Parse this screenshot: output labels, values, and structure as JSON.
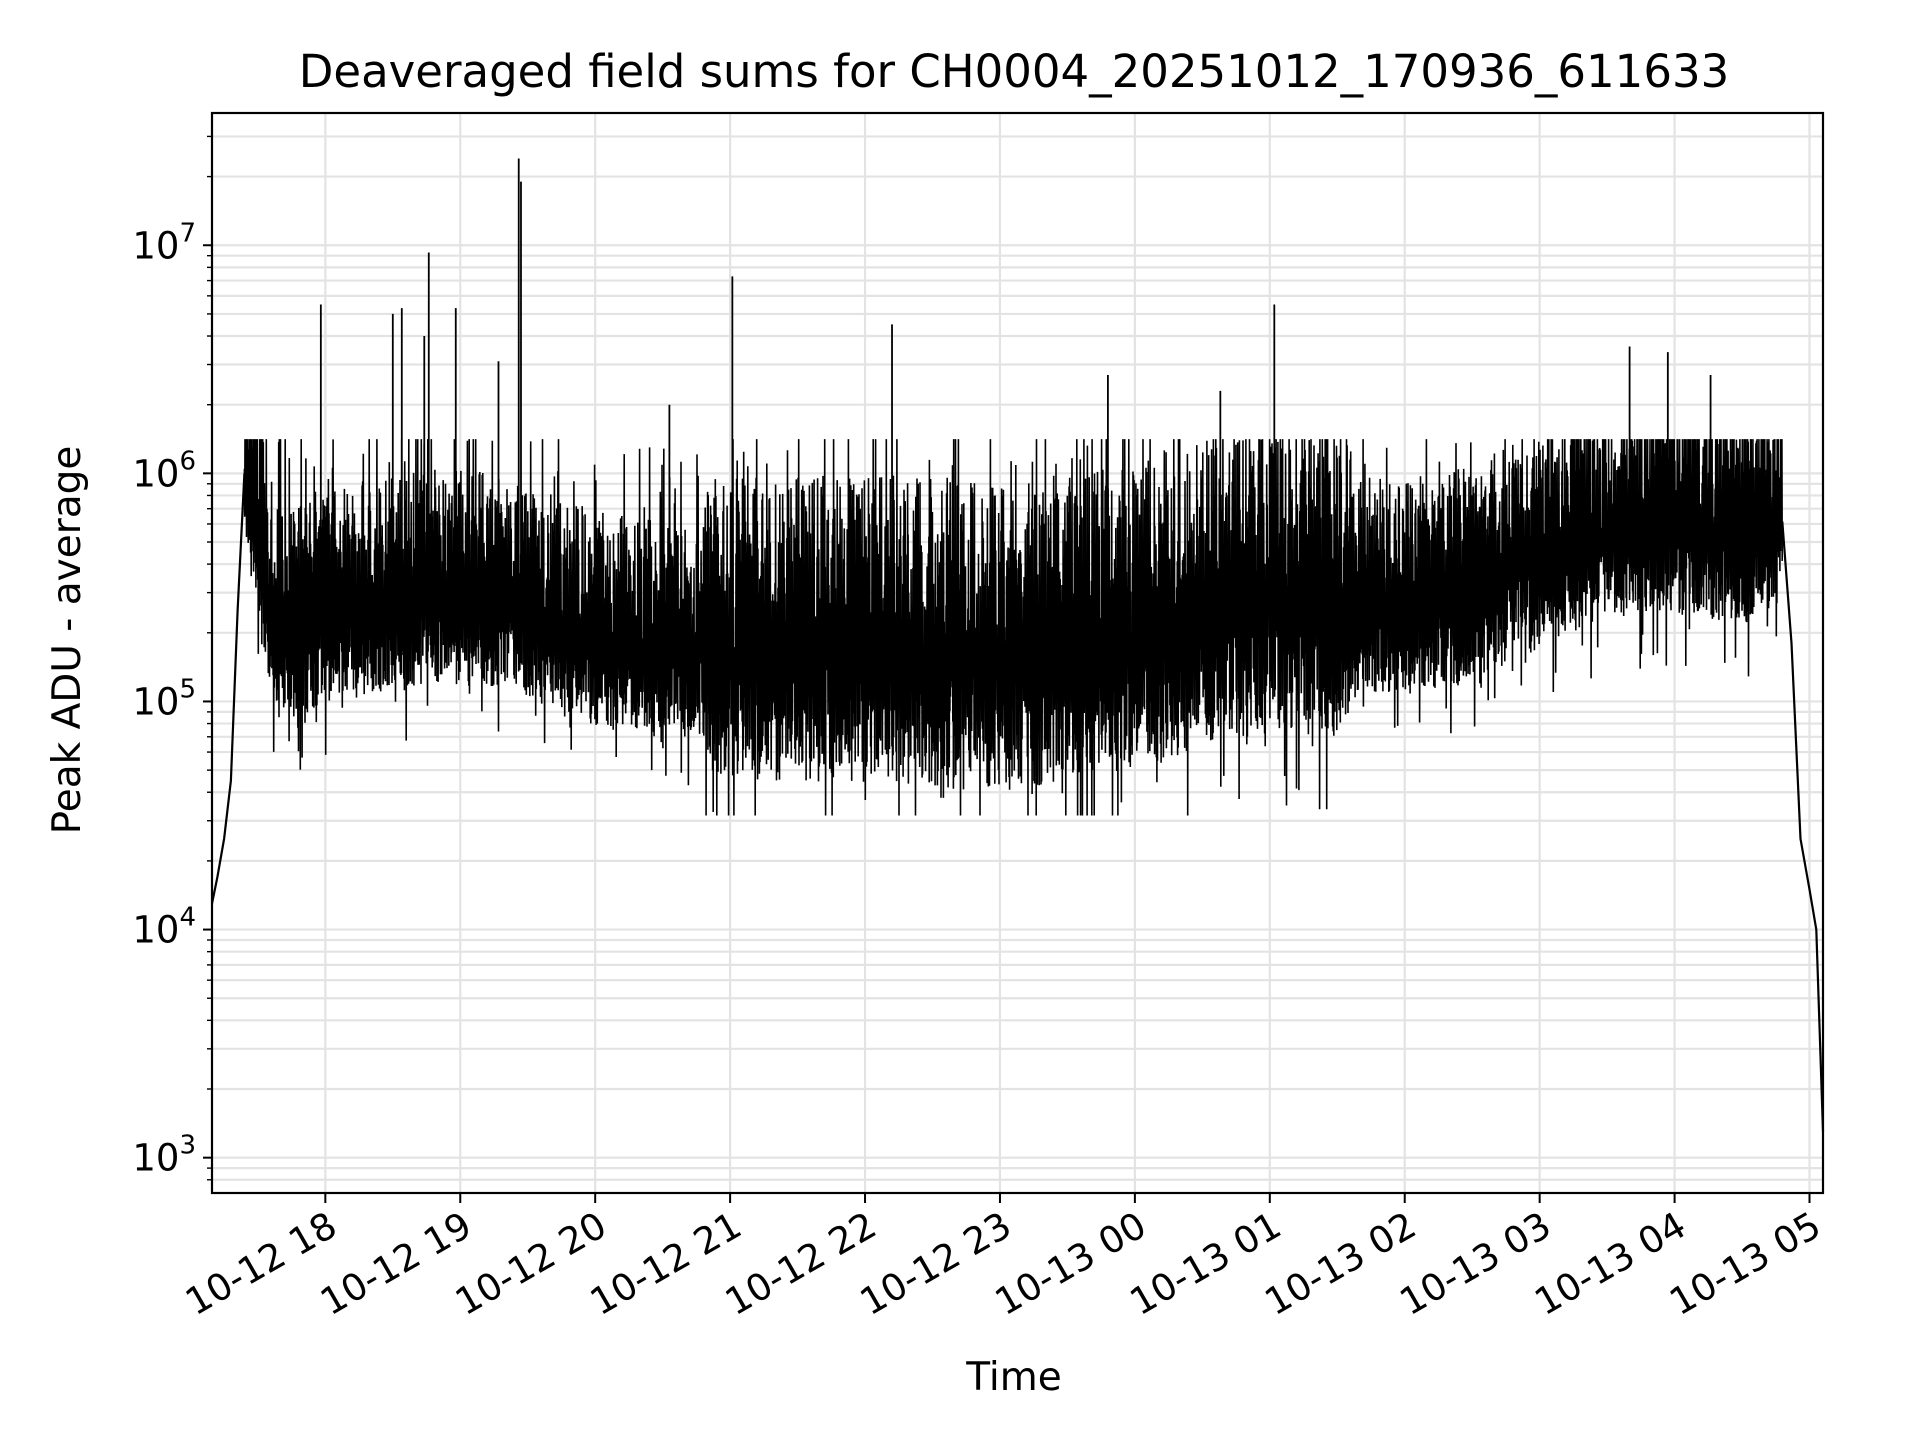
{
  "chart_data": {
    "type": "line",
    "title": "Deaveraged field sums for CH0004_20251012_170936_611633",
    "xlabel": "Time",
    "ylabel": "Peak ADU - average",
    "yscale": "log",
    "xlim": [
      "2025-10-12 17:09:36",
      "2025-10-13 05:06"
    ],
    "ylim": [
      700,
      38000000
    ],
    "grid": true,
    "line_color": "#000000",
    "grid_color": "#e3e3e3",
    "x_ticks": [
      "10-12 18",
      "10-12 19",
      "10-12 20",
      "10-12 21",
      "10-12 22",
      "10-12 23",
      "10-13 00",
      "10-13 01",
      "10-13 02",
      "10-13 03",
      "10-13 04",
      "10-13 05"
    ],
    "y_ticks": [
      {
        "value": 1000,
        "base": "10",
        "exp": "3"
      },
      {
        "value": 10000,
        "base": "10",
        "exp": "4"
      },
      {
        "value": 100000,
        "base": "10",
        "exp": "5"
      },
      {
        "value": 1000000,
        "base": "10",
        "exp": "6"
      },
      {
        "value": 10000000,
        "base": "10",
        "exp": "7"
      }
    ],
    "series": [
      {
        "x": [
          "2025-10-12 17:09:36",
          "2025-10-12 17:12",
          "2025-10-12 17:15",
          "2025-10-12 17:18",
          "2025-10-12 17:21",
          "2025-10-12 17:24",
          "2025-10-12 17:30",
          "2025-10-12 17:36",
          "2025-10-12 17:45",
          "2025-10-12 17:58",
          "2025-10-12 18:30",
          "2025-10-12 18:46",
          "2025-10-12 19:00",
          "2025-10-12 19:26",
          "2025-10-12 19:40",
          "2025-10-12 20:00",
          "2025-10-12 20:30",
          "2025-10-12 21:00",
          "2025-10-12 21:30",
          "2025-10-12 22:00",
          "2025-10-12 22:30",
          "2025-10-12 23:00",
          "2025-10-12 23:30",
          "2025-10-13 00:00",
          "2025-10-13 00:30",
          "2025-10-13 01:00",
          "2025-10-13 01:30",
          "2025-10-13 02:00",
          "2025-10-13 02:30",
          "2025-10-13 03:00",
          "2025-10-13 03:30",
          "2025-10-13 04:00",
          "2025-10-13 04:30",
          "2025-10-13 04:45",
          "2025-10-13 04:48",
          "2025-10-13 04:52",
          "2025-10-13 04:56",
          "2025-10-13 05:00",
          "2025-10-13 05:03",
          "2025-10-13 05:06"
        ],
        "y": [
          13000,
          17000,
          25000,
          45000,
          250000,
          1000000,
          550000,
          240000,
          180000,
          220000,
          250000,
          270000,
          260000,
          240000,
          210000,
          170000,
          160000,
          150000,
          155000,
          160000,
          150000,
          140000,
          160000,
          180000,
          220000,
          260000,
          250000,
          240000,
          270000,
          400000,
          520000,
          560000,
          480000,
          550000,
          600000,
          180000,
          25000,
          15000,
          10000,
          1300
        ]
      }
    ],
    "spikes": [
      {
        "x": "2025-10-12 17:58",
        "y": 5500000
      },
      {
        "x": "2025-10-12 18:30",
        "y": 5000000
      },
      {
        "x": "2025-10-12 18:34",
        "y": 5300000
      },
      {
        "x": "2025-10-12 18:46",
        "y": 9300000
      },
      {
        "x": "2025-10-12 18:44",
        "y": 4000000
      },
      {
        "x": "2025-10-12 18:58",
        "y": 5300000
      },
      {
        "x": "2025-10-12 19:17",
        "y": 3100000
      },
      {
        "x": "2025-10-12 19:26",
        "y": 24000000
      },
      {
        "x": "2025-10-12 19:27",
        "y": 19000000
      },
      {
        "x": "2025-10-12 20:33",
        "y": 2000000
      },
      {
        "x": "2025-10-12 21:01",
        "y": 7300000
      },
      {
        "x": "2025-10-12 22:12",
        "y": 4500000
      },
      {
        "x": "2025-10-12 23:48",
        "y": 2700000
      },
      {
        "x": "2025-10-13 00:38",
        "y": 2300000
      },
      {
        "x": "2025-10-13 01:02",
        "y": 5500000
      },
      {
        "x": "2025-10-13 03:40",
        "y": 3600000
      },
      {
        "x": "2025-10-13 03:57",
        "y": 3400000
      },
      {
        "x": "2025-10-13 04:16",
        "y": 2700000
      }
    ]
  }
}
